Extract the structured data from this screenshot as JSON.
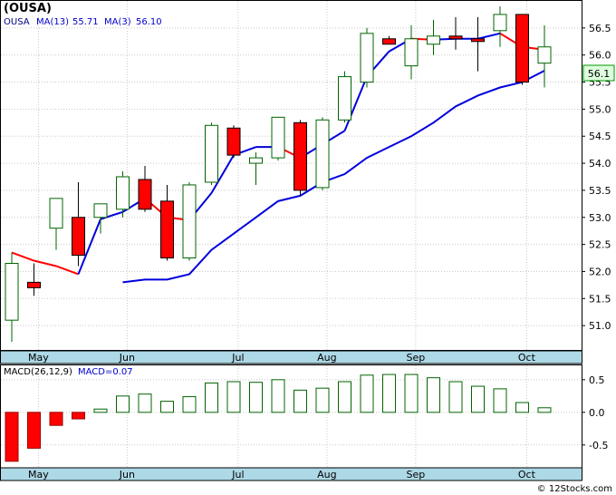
{
  "chart_data": [
    {
      "type": "candlestick",
      "title": "(OUSA)",
      "legend": {
        "symbol": "OUSA",
        "ma13_label": "MA(13)",
        "ma13_value": "55.71",
        "ma3_label": "MA(3)",
        "ma3_value": "56.10"
      },
      "price_label": "56.1",
      "ylim": [
        50.55,
        57.0
      ],
      "yticks": [
        "51.0",
        "51.5",
        "52.0",
        "52.5",
        "53.0",
        "53.5",
        "54.0",
        "54.5",
        "55.0",
        "55.5",
        "56.0",
        "56.5"
      ],
      "ytick_values": [
        51.0,
        51.5,
        52.0,
        52.5,
        53.0,
        53.5,
        54.0,
        54.5,
        55.0,
        55.5,
        56.0,
        56.5
      ],
      "x_labels": [
        "May",
        "Jun",
        "Jul",
        "Aug",
        "Sep",
        "Oct"
      ],
      "x_label_index": [
        1.2,
        5.2,
        10.2,
        14.2,
        18.2,
        23.2
      ],
      "candles": [
        {
          "o": 51.1,
          "h": 52.35,
          "l": 50.7,
          "c": 52.15
        },
        {
          "o": 51.8,
          "h": 52.15,
          "l": 51.55,
          "c": 51.7
        },
        {
          "o": 52.8,
          "h": 53.35,
          "l": 52.4,
          "c": 53.35
        },
        {
          "o": 53.0,
          "h": 53.65,
          "l": 52.1,
          "c": 52.3
        },
        {
          "o": 53.0,
          "h": 53.25,
          "l": 52.7,
          "c": 53.25
        },
        {
          "o": 53.15,
          "h": 53.85,
          "l": 53.0,
          "c": 53.75
        },
        {
          "o": 53.7,
          "h": 53.95,
          "l": 53.1,
          "c": 53.15
        },
        {
          "o": 53.3,
          "h": 53.6,
          "l": 52.2,
          "c": 52.25
        },
        {
          "o": 52.25,
          "h": 53.65,
          "l": 52.2,
          "c": 53.6
        },
        {
          "o": 53.65,
          "h": 54.75,
          "l": 53.6,
          "c": 54.7
        },
        {
          "o": 54.65,
          "h": 54.7,
          "l": 54.1,
          "c": 54.15
        },
        {
          "o": 54.0,
          "h": 54.2,
          "l": 53.6,
          "c": 54.1
        },
        {
          "o": 54.1,
          "h": 54.85,
          "l": 54.05,
          "c": 54.85
        },
        {
          "o": 54.75,
          "h": 54.8,
          "l": 53.4,
          "c": 53.5
        },
        {
          "o": 53.55,
          "h": 54.85,
          "l": 53.5,
          "c": 54.8
        },
        {
          "o": 54.8,
          "h": 55.7,
          "l": 54.75,
          "c": 55.6
        },
        {
          "o": 55.5,
          "h": 56.5,
          "l": 55.4,
          "c": 56.4
        },
        {
          "o": 56.3,
          "h": 56.35,
          "l": 56.2,
          "c": 56.2
        },
        {
          "o": 55.8,
          "h": 56.55,
          "l": 55.55,
          "c": 56.3
        },
        {
          "o": 56.2,
          "h": 56.65,
          "l": 56.0,
          "c": 56.35
        },
        {
          "o": 56.35,
          "h": 56.7,
          "l": 56.1,
          "c": 56.3
        },
        {
          "o": 56.3,
          "h": 56.7,
          "l": 55.7,
          "c": 56.25
        },
        {
          "o": 56.45,
          "h": 56.9,
          "l": 56.15,
          "c": 56.75
        },
        {
          "o": 56.75,
          "h": 56.75,
          "l": 55.45,
          "c": 55.5
        },
        {
          "o": 55.85,
          "h": 56.55,
          "l": 55.4,
          "c": 56.15
        }
      ],
      "ma13": [
        null,
        null,
        null,
        null,
        null,
        51.8,
        51.85,
        51.85,
        51.95,
        52.4,
        52.7,
        53.0,
        53.3,
        53.4,
        53.65,
        53.8,
        54.1,
        54.3,
        54.5,
        54.75,
        55.05,
        55.25,
        55.4,
        55.5,
        55.71
      ],
      "ma3": [
        52.35,
        52.2,
        52.1,
        51.95,
        null,
        null,
        53.35,
        53.0,
        52.95,
        53.45,
        54.15,
        54.3,
        54.3,
        54.1,
        54.35,
        54.6,
        null,
        null,
        null,
        null,
        56.3,
        56.3,
        56.4,
        56.15,
        56.1
      ],
      "ma3_blue_segments": [
        [
          0,
          3
        ],
        [
          3,
          6
        ],
        [
          15,
          20
        ]
      ]
    },
    {
      "type": "bar",
      "title": "MACD(26,12,9)",
      "legend_label": "MACD=0.07",
      "ylim": [
        -0.85,
        0.72
      ],
      "yticks": [
        "0.5",
        "0.0",
        "-0.5"
      ],
      "ytick_values": [
        0.5,
        0.0,
        -0.5
      ],
      "x_labels": [
        "May",
        "Jun",
        "Jul",
        "Aug",
        "Sep",
        "Oct"
      ],
      "values": [
        -0.75,
        -0.55,
        -0.2,
        -0.1,
        0.05,
        0.25,
        0.28,
        0.17,
        0.24,
        0.45,
        0.47,
        0.46,
        0.5,
        0.34,
        0.37,
        0.47,
        0.57,
        0.58,
        0.58,
        0.53,
        0.47,
        0.4,
        0.36,
        0.15,
        0.07
      ]
    }
  ],
  "watermark": "© 12Stocks.com"
}
